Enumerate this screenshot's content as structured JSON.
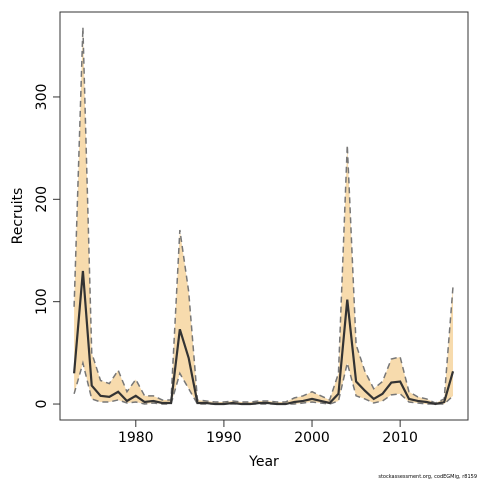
{
  "chart_data": {
    "type": "line",
    "x_label": "Year",
    "y_label": "Recruits",
    "note": "stockassessment.org, codEGMig, r8159",
    "x": [
      1973,
      1974,
      1975,
      1976,
      1977,
      1978,
      1979,
      1980,
      1981,
      1982,
      1983,
      1984,
      1985,
      1986,
      1987,
      1988,
      1989,
      1990,
      1991,
      1992,
      1993,
      1994,
      1995,
      1996,
      1997,
      1998,
      1999,
      2000,
      2001,
      2002,
      2003,
      2004,
      2005,
      2006,
      2007,
      2008,
      2009,
      2010,
      2011,
      2012,
      2013,
      2014,
      2015,
      2016
    ],
    "values": [
      30,
      130,
      18,
      8,
      7,
      12,
      3,
      8,
      2,
      3,
      1,
      1,
      73,
      45,
      1,
      1,
      0,
      0,
      1,
      0,
      0,
      1,
      1,
      0,
      0,
      2,
      3,
      5,
      3,
      1,
      10,
      102,
      22,
      13,
      5,
      10,
      21,
      22,
      5,
      3,
      2,
      0,
      2,
      32
    ],
    "upper": [
      95,
      368,
      50,
      23,
      20,
      33,
      12,
      24,
      8,
      8,
      4,
      4,
      170,
      110,
      4,
      3,
      2,
      2,
      3,
      2,
      2,
      3,
      3,
      2,
      2,
      6,
      8,
      12,
      8,
      4,
      30,
      253,
      58,
      32,
      15,
      22,
      44,
      46,
      12,
      7,
      5,
      1,
      5,
      115
    ],
    "lower": [
      10,
      40,
      5,
      2,
      2,
      4,
      1,
      2,
      0,
      1,
      0,
      0,
      30,
      15,
      0,
      0,
      0,
      0,
      0,
      0,
      0,
      0,
      0,
      0,
      0,
      0,
      1,
      2,
      1,
      0,
      3,
      40,
      8,
      5,
      1,
      3,
      9,
      10,
      2,
      1,
      0,
      0,
      0,
      8
    ],
    "color": "#333333",
    "band_color": "#f7dbad",
    "bound_color": "#777777",
    "xlim": [
      1971.4,
      2017.7
    ],
    "ylim": [
      -15.6,
      383
    ],
    "xticks": [
      1980,
      1990,
      2000,
      2010
    ],
    "yticks": [
      0,
      100,
      200,
      300
    ]
  }
}
